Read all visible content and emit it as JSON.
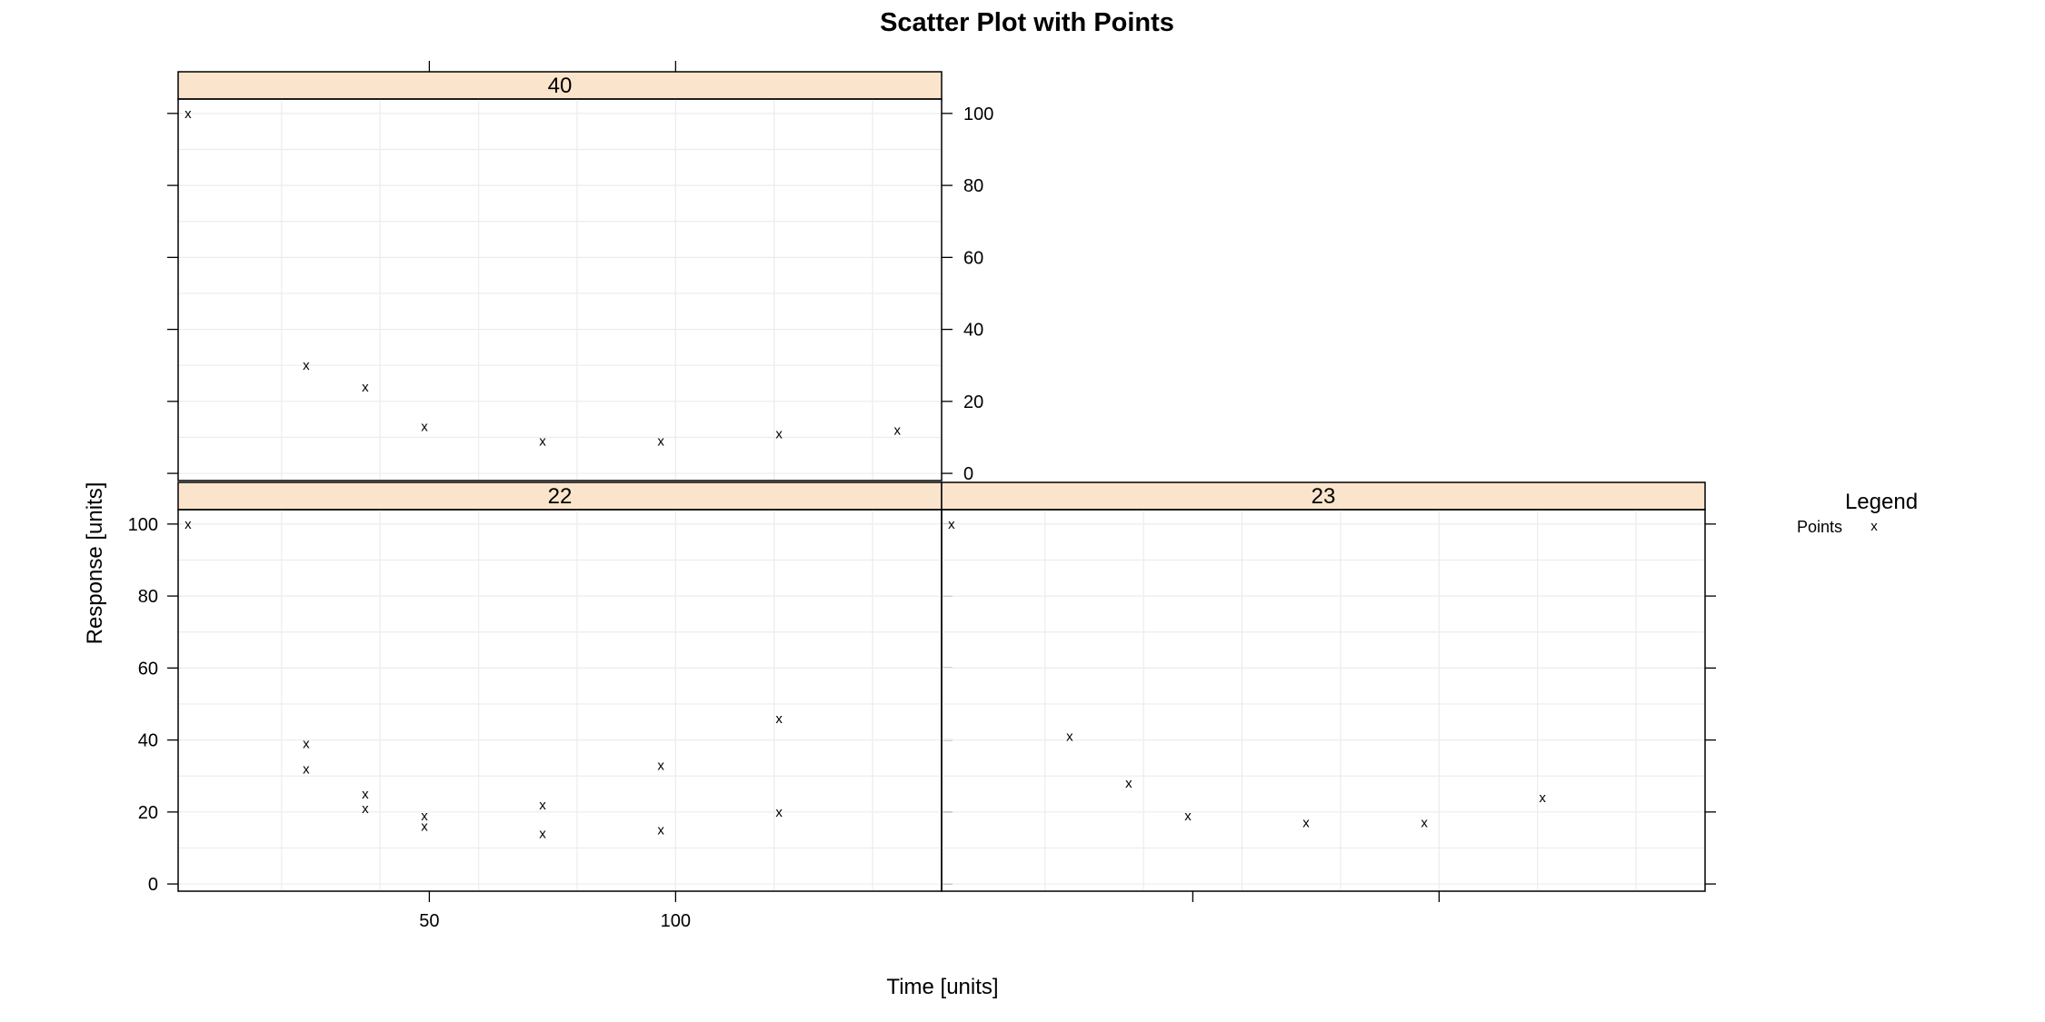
{
  "chart_data": {
    "type": "scatter",
    "title": "Scatter Plot with Points",
    "xlabel": "Time [units]",
    "ylabel": "Response [units]",
    "xlim": [
      -1,
      154
    ],
    "ylim": [
      -2,
      104
    ],
    "x_ticks": [
      50,
      100
    ],
    "y_ticks": [
      0,
      20,
      40,
      60,
      80,
      100
    ],
    "point_symbol": "x",
    "grid": true,
    "legend": {
      "title": "Legend",
      "placement": "right",
      "entries": [
        {
          "label": "Points",
          "symbol": "x"
        }
      ]
    },
    "panels": [
      {
        "name": "40",
        "points": [
          [
            1,
            100
          ],
          [
            25,
            30
          ],
          [
            37,
            24
          ],
          [
            49,
            13
          ],
          [
            73,
            9
          ],
          [
            97,
            9
          ],
          [
            121,
            11
          ],
          [
            145,
            12
          ]
        ]
      },
      {
        "name": "22",
        "points": [
          [
            1,
            100
          ],
          [
            25,
            39
          ],
          [
            25,
            32
          ],
          [
            37,
            25
          ],
          [
            37,
            21
          ],
          [
            49,
            19
          ],
          [
            49,
            16
          ],
          [
            73,
            22
          ],
          [
            73,
            14
          ],
          [
            97,
            33
          ],
          [
            97,
            15
          ],
          [
            121,
            46
          ],
          [
            121,
            20
          ]
        ]
      },
      {
        "name": "23",
        "points": [
          [
            1,
            100
          ],
          [
            25,
            41
          ],
          [
            37,
            28
          ],
          [
            49,
            19
          ],
          [
            73,
            17
          ],
          [
            97,
            17
          ],
          [
            121,
            24
          ]
        ]
      }
    ]
  }
}
